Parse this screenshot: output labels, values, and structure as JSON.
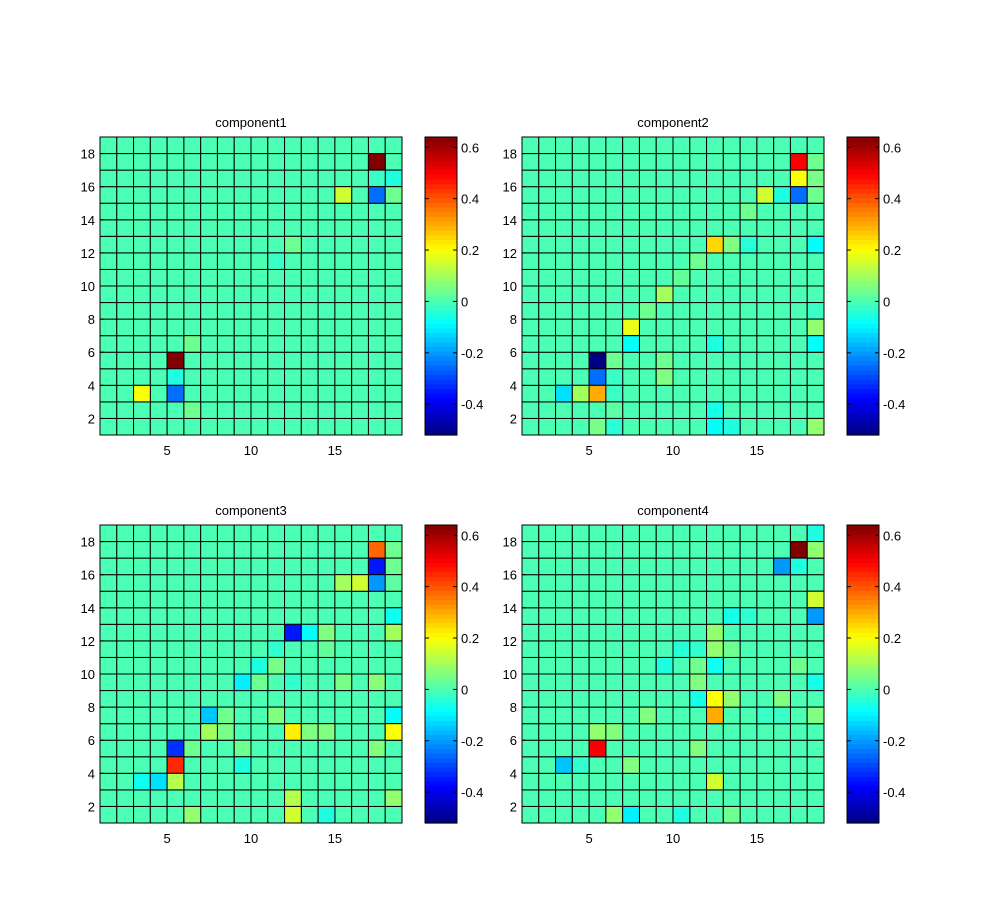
{
  "chart_data": [
    {
      "type": "heatmap",
      "title": "component1",
      "grid_size": 18,
      "xlim": [
        1,
        19
      ],
      "ylim": [
        1,
        19
      ],
      "x_ticks": [
        5,
        10,
        15
      ],
      "y_ticks": [
        2,
        4,
        6,
        8,
        10,
        12,
        14,
        16,
        18
      ],
      "colorbar_ticks": [
        -0.4,
        -0.2,
        0,
        0.2,
        0.4,
        0.6
      ],
      "clim": [
        -0.52,
        0.64
      ],
      "colormap": "jet",
      "grid": true,
      "cells": [
        [
          17,
          17,
          0.64
        ],
        [
          18,
          16,
          -0.05
        ],
        [
          17,
          16,
          -0.02
        ],
        [
          15,
          15,
          0.15
        ],
        [
          17,
          15,
          -0.25
        ],
        [
          18,
          15,
          0.04
        ],
        [
          12,
          12,
          0.04
        ],
        [
          11,
          11,
          -0.02
        ],
        [
          5,
          5,
          0.64
        ],
        [
          5,
          4,
          -0.05
        ],
        [
          6,
          6,
          0.04
        ],
        [
          3,
          3,
          0.2
        ],
        [
          5,
          3,
          -0.25
        ],
        [
          6,
          2,
          0.04
        ]
      ]
    },
    {
      "type": "heatmap",
      "title": "component2",
      "grid_size": 18,
      "xlim": [
        1,
        19
      ],
      "ylim": [
        1,
        19
      ],
      "x_ticks": [
        5,
        10,
        15
      ],
      "y_ticks": [
        2,
        4,
        6,
        8,
        10,
        12,
        14,
        16,
        18
      ],
      "colorbar_ticks": [
        -0.4,
        -0.2,
        0,
        0.2,
        0.4,
        0.6
      ],
      "clim": [
        -0.52,
        0.64
      ],
      "colormap": "jet",
      "grid": true,
      "cells": [
        [
          17,
          17,
          0.5
        ],
        [
          18,
          17,
          0.04
        ],
        [
          17,
          16,
          0.2
        ],
        [
          18,
          16,
          0.05
        ],
        [
          15,
          15,
          0.15
        ],
        [
          16,
          15,
          -0.05
        ],
        [
          17,
          15,
          -0.25
        ],
        [
          18,
          15,
          0.04
        ],
        [
          14,
          14,
          0.04
        ],
        [
          12,
          12,
          0.25
        ],
        [
          13,
          12,
          0.06
        ],
        [
          14,
          12,
          -0.04
        ],
        [
          18,
          12,
          -0.08
        ],
        [
          11,
          11,
          0.04
        ],
        [
          10,
          10,
          0.03
        ],
        [
          9,
          9,
          0.1
        ],
        [
          8,
          8,
          0.04
        ],
        [
          18,
          8,
          -0.02
        ],
        [
          7,
          7,
          0.18
        ],
        [
          18,
          7,
          0.08
        ],
        [
          7,
          6,
          -0.08
        ],
        [
          12,
          6,
          -0.05
        ],
        [
          18,
          6,
          -0.08
        ],
        [
          5,
          5,
          -0.52
        ],
        [
          6,
          5,
          0.04
        ],
        [
          9,
          5,
          0.04
        ],
        [
          5,
          4,
          -0.25
        ],
        [
          6,
          4,
          -0.02
        ],
        [
          9,
          4,
          0.06
        ],
        [
          3,
          3,
          -0.12
        ],
        [
          4,
          3,
          0.1
        ],
        [
          5,
          3,
          0.3
        ],
        [
          6,
          3,
          -0.02
        ],
        [
          6,
          2,
          0.02
        ],
        [
          12,
          2,
          -0.06
        ],
        [
          5,
          1,
          0.05
        ],
        [
          6,
          1,
          -0.04
        ],
        [
          12,
          1,
          -0.08
        ],
        [
          13,
          1,
          -0.05
        ],
        [
          18,
          1,
          0.08
        ]
      ]
    },
    {
      "type": "heatmap",
      "title": "component3",
      "grid_size": 18,
      "xlim": [
        1,
        19
      ],
      "ylim": [
        1,
        19
      ],
      "x_ticks": [
        5,
        10,
        15
      ],
      "y_ticks": [
        2,
        4,
        6,
        8,
        10,
        12,
        14,
        16,
        18
      ],
      "colorbar_ticks": [
        -0.4,
        -0.2,
        0,
        0.2,
        0.4,
        0.6
      ],
      "clim": [
        -0.52,
        0.64
      ],
      "colormap": "jet",
      "grid": true,
      "cells": [
        [
          17,
          17,
          0.38
        ],
        [
          18,
          17,
          0.04
        ],
        [
          17,
          16,
          -0.35
        ],
        [
          18,
          16,
          0.04
        ],
        [
          15,
          15,
          0.1
        ],
        [
          16,
          15,
          0.15
        ],
        [
          17,
          15,
          -0.2
        ],
        [
          18,
          15,
          0.02
        ],
        [
          18,
          13,
          -0.07
        ],
        [
          12,
          12,
          -0.35
        ],
        [
          13,
          12,
          -0.08
        ],
        [
          14,
          12,
          0.06
        ],
        [
          18,
          12,
          0.1
        ],
        [
          11,
          11,
          -0.03
        ],
        [
          14,
          11,
          0.03
        ],
        [
          10,
          10,
          -0.05
        ],
        [
          11,
          10,
          0.05
        ],
        [
          9,
          9,
          -0.1
        ],
        [
          10,
          9,
          0.04
        ],
        [
          12,
          9,
          -0.03
        ],
        [
          15,
          9,
          0.05
        ],
        [
          17,
          9,
          0.07
        ],
        [
          7,
          7,
          -0.15
        ],
        [
          8,
          7,
          0.04
        ],
        [
          11,
          7,
          0.06
        ],
        [
          18,
          7,
          -0.08
        ],
        [
          7,
          6,
          0.1
        ],
        [
          8,
          6,
          0.05
        ],
        [
          12,
          6,
          0.22
        ],
        [
          13,
          6,
          0.06
        ],
        [
          14,
          6,
          0.06
        ],
        [
          18,
          6,
          0.2
        ],
        [
          5,
          5,
          -0.32
        ],
        [
          6,
          5,
          0.04
        ],
        [
          9,
          5,
          0.04
        ],
        [
          17,
          5,
          0.06
        ],
        [
          5,
          4,
          0.45
        ],
        [
          9,
          4,
          -0.05
        ],
        [
          3,
          3,
          -0.07
        ],
        [
          4,
          3,
          -0.12
        ],
        [
          5,
          3,
          0.12
        ],
        [
          12,
          2,
          0.12
        ],
        [
          18,
          2,
          0.08
        ],
        [
          6,
          1,
          0.08
        ],
        [
          12,
          1,
          0.15
        ],
        [
          14,
          1,
          -0.05
        ]
      ]
    },
    {
      "type": "heatmap",
      "title": "component4",
      "grid_size": 18,
      "xlim": [
        1,
        19
      ],
      "ylim": [
        1,
        19
      ],
      "x_ticks": [
        5,
        10,
        15
      ],
      "y_ticks": [
        2,
        4,
        6,
        8,
        10,
        12,
        14,
        16,
        18
      ],
      "colorbar_ticks": [
        -0.4,
        -0.2,
        0,
        0.2,
        0.4,
        0.6
      ],
      "clim": [
        -0.52,
        0.64
      ],
      "colormap": "jet",
      "grid": true,
      "cells": [
        [
          18,
          18,
          -0.05
        ],
        [
          17,
          17,
          0.64
        ],
        [
          18,
          17,
          0.08
        ],
        [
          16,
          16,
          -0.2
        ],
        [
          17,
          16,
          -0.05
        ],
        [
          18,
          14,
          0.15
        ],
        [
          13,
          13,
          -0.06
        ],
        [
          14,
          13,
          -0.03
        ],
        [
          18,
          13,
          -0.2
        ],
        [
          12,
          12,
          0.08
        ],
        [
          10,
          11,
          -0.04
        ],
        [
          11,
          11,
          -0.03
        ],
        [
          12,
          11,
          0.08
        ],
        [
          13,
          11,
          0.04
        ],
        [
          9,
          10,
          -0.05
        ],
        [
          11,
          10,
          0.04
        ],
        [
          12,
          10,
          -0.07
        ],
        [
          17,
          10,
          0.04
        ],
        [
          11,
          9,
          0.06
        ],
        [
          18,
          9,
          -0.06
        ],
        [
          11,
          8,
          -0.06
        ],
        [
          12,
          8,
          0.2
        ],
        [
          13,
          8,
          0.08
        ],
        [
          16,
          8,
          0.06
        ],
        [
          8,
          7,
          0.06
        ],
        [
          12,
          7,
          0.3
        ],
        [
          15,
          7,
          -0.02
        ],
        [
          16,
          7,
          -0.02
        ],
        [
          18,
          7,
          0.06
        ],
        [
          5,
          6,
          0.08
        ],
        [
          6,
          6,
          0.06
        ],
        [
          5,
          5,
          0.5
        ],
        [
          11,
          5,
          0.06
        ],
        [
          3,
          4,
          -0.15
        ],
        [
          4,
          4,
          -0.03
        ],
        [
          7,
          4,
          0.06
        ],
        [
          12,
          3,
          0.15
        ],
        [
          6,
          1,
          0.08
        ],
        [
          7,
          1,
          -0.1
        ],
        [
          10,
          1,
          -0.05
        ],
        [
          13,
          1,
          0.04
        ]
      ]
    }
  ]
}
